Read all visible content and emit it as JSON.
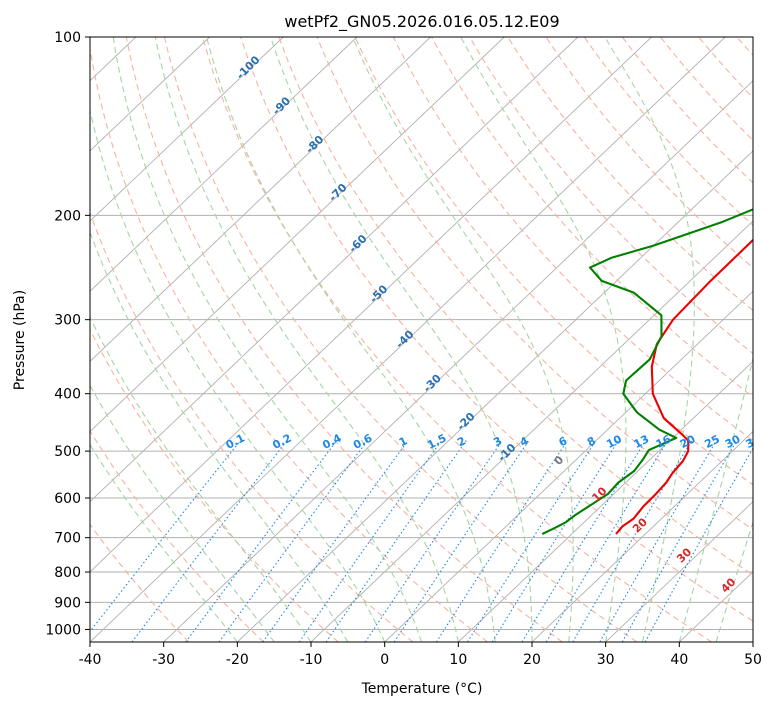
{
  "chart_data": {
    "type": "line",
    "subtype": "skew-t log-p diagram",
    "title": "wetPf2_GN05.2026.016.05.12.E09",
    "xlabel": "Temperature (°C)",
    "ylabel": "Pressure (hPa)",
    "xlim": [
      -40,
      50
    ],
    "ylim": [
      1050,
      100
    ],
    "x_ticks": [
      -40,
      -30,
      -20,
      -10,
      0,
      10,
      20,
      30,
      40,
      50
    ],
    "y_ticks": [
      100,
      200,
      300,
      400,
      500,
      600,
      700,
      800,
      900,
      1000
    ],
    "dry_adiabat_labels": [
      -100,
      -90,
      -80,
      -70,
      -60,
      -50,
      -40,
      -30,
      -20,
      -10
    ],
    "moist_adiabat_labels": [
      0,
      10,
      20,
      30,
      40
    ],
    "mixing_ratio_labels": [
      "0.1",
      "0.2",
      "0.4",
      "0.6",
      "1",
      "1.5",
      "2",
      "3",
      "4",
      "6",
      "8",
      "10",
      "13",
      "16",
      "20",
      "25",
      "30",
      "36"
    ],
    "series": [
      {
        "name": "Temperature",
        "color": "#ee0000",
        "points": [
          {
            "p": 690,
            "t": 16.0
          },
          {
            "p": 670,
            "t": 15.8
          },
          {
            "p": 650,
            "t": 16.2
          },
          {
            "p": 620,
            "t": 15.8
          },
          {
            "p": 590,
            "t": 15.7
          },
          {
            "p": 565,
            "t": 15.5
          },
          {
            "p": 545,
            "t": 15.0
          },
          {
            "p": 520,
            "t": 14.7
          },
          {
            "p": 500,
            "t": 14.0
          },
          {
            "p": 480,
            "t": 12.5
          },
          {
            "p": 470,
            "t": 11.0
          },
          {
            "p": 440,
            "t": 6.0
          },
          {
            "p": 400,
            "t": 1.0
          },
          {
            "p": 360,
            "t": -3.0
          },
          {
            "p": 330,
            "t": -5.5
          },
          {
            "p": 300,
            "t": -6.8
          },
          {
            "p": 260,
            "t": -7.2
          },
          {
            "p": 220,
            "t": -7.3
          },
          {
            "p": 195,
            "t": -6.2
          },
          {
            "p": 178,
            "t": -3.7
          },
          {
            "p": 165,
            "t": 0.0
          },
          {
            "p": 150,
            "t": 5.2
          },
          {
            "p": 140,
            "t": 7.7
          },
          {
            "p": 130,
            "t": 9.2
          },
          {
            "p": 122,
            "t": 9.5
          },
          {
            "p": 112,
            "t": 11.0
          },
          {
            "p": 100,
            "t": 14.2
          }
        ]
      },
      {
        "name": "Dewpoint",
        "color": "#008000",
        "points": [
          {
            "p": 690,
            "t": 6.0
          },
          {
            "p": 675,
            "t": 6.8
          },
          {
            "p": 660,
            "t": 7.5
          },
          {
            "p": 640,
            "t": 7.8
          },
          {
            "p": 615,
            "t": 8.5
          },
          {
            "p": 590,
            "t": 9.2
          },
          {
            "p": 565,
            "t": 9.0
          },
          {
            "p": 540,
            "t": 9.5
          },
          {
            "p": 515,
            "t": 9.0
          },
          {
            "p": 498,
            "t": 8.5
          },
          {
            "p": 475,
            "t": 10.5
          },
          {
            "p": 460,
            "t": 7.0
          },
          {
            "p": 430,
            "t": 1.5
          },
          {
            "p": 400,
            "t": -3.0
          },
          {
            "p": 380,
            "t": -4.5
          },
          {
            "p": 350,
            "t": -4.3
          },
          {
            "p": 320,
            "t": -6.0
          },
          {
            "p": 295,
            "t": -9.0
          },
          {
            "p": 270,
            "t": -16.0
          },
          {
            "p": 258,
            "t": -22.0
          },
          {
            "p": 245,
            "t": -25.5
          },
          {
            "p": 236,
            "t": -24.0
          },
          {
            "p": 225,
            "t": -20.0
          },
          {
            "p": 205,
            "t": -14.0
          },
          {
            "p": 185,
            "t": -9.0
          },
          {
            "p": 165,
            "t": -5.5
          },
          {
            "p": 145,
            "t": -3.5
          },
          {
            "p": 125,
            "t": -2.0
          },
          {
            "p": 110,
            "t": 0.5
          },
          {
            "p": 100,
            "t": 3.5
          }
        ]
      }
    ],
    "colors": {
      "isobar": "#b0b0b0",
      "isotherm": "#b0b0b0",
      "dry_adiabat": "#f4b3a0",
      "moist_adiabat": "#a5d4a5",
      "mixing_ratio": "#1e88e5",
      "dry_label": "#2a6fb0",
      "moist_label": "#d62728",
      "theta_zero_label": "#777777"
    }
  }
}
